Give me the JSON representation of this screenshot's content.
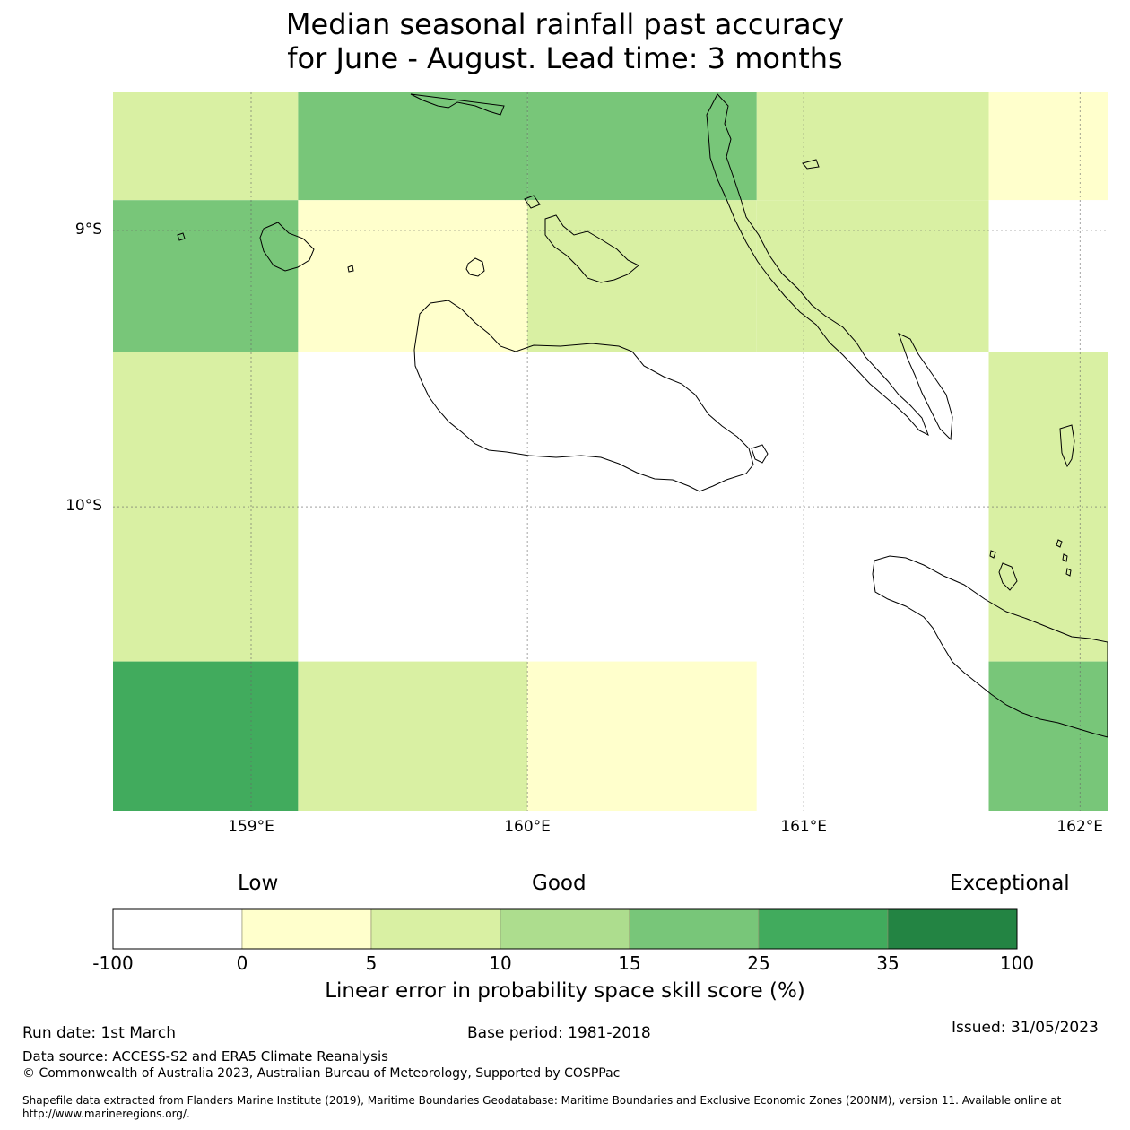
{
  "title": {
    "line1": "Median seasonal rainfall past accuracy",
    "line2": "for June - August. Lead time: 3 months"
  },
  "chart_data": {
    "type": "heatmap",
    "lon_range": [
      158.5,
      162.1
    ],
    "lat_range": [
      -11.1,
      -8.5
    ],
    "x_ticks": [
      {
        "value": 159,
        "label": "159°E"
      },
      {
        "value": 160,
        "label": "160°E"
      },
      {
        "value": 161,
        "label": "161°E"
      },
      {
        "value": 162,
        "label": "162°E"
      }
    ],
    "y_ticks": [
      {
        "value": -9,
        "label": "9°S"
      },
      {
        "value": -10,
        "label": "10°S"
      }
    ],
    "lon_edges": [
      158.5,
      159.17,
      160.0,
      160.83,
      161.67,
      162.1
    ],
    "lat_edges": [
      -8.5,
      -8.89,
      -9.44,
      -10.56,
      -11.1
    ],
    "skill_categories": [
      [
        5,
        15,
        15,
        5,
        0
      ],
      [
        15,
        0,
        5,
        5,
        -100
      ],
      [
        5,
        -100,
        -100,
        -100,
        5
      ],
      [
        25,
        5,
        0,
        -100,
        15
      ]
    ],
    "colorbar": {
      "bounds": [
        "-100",
        "0",
        "5",
        "10",
        "15",
        "25",
        "35",
        "100"
      ],
      "colors": [
        "#ffffff",
        "#ffffcc",
        "#d9f0a3",
        "#addd8e",
        "#78c679",
        "#41ab5d",
        "#238443"
      ],
      "categories": [
        "Low",
        "Good",
        "Exceptional"
      ],
      "label": "Linear error in probability space skill score (%)"
    }
  },
  "footer": {
    "run_date": "Run date: 1st March",
    "base_period": "Base period: 1981-2018",
    "issued": "Issued: 31/05/2023",
    "data_source": "Data source: ACCESS-S2 and ERA5 Climate Reanalysis",
    "copyright": "© Commonwealth of Australia 2023, Australian Bureau of Meteorology, Supported by COSPPac",
    "shapefile_line1": "Shapefile data extracted from Flanders Marine Institute (2019), Maritime Boundaries Geodatabase: Maritime Boundaries and Exclusive Economic Zones (200NM), version 11. Available online at",
    "shapefile_line2": "http://www.marineregions.org/."
  }
}
